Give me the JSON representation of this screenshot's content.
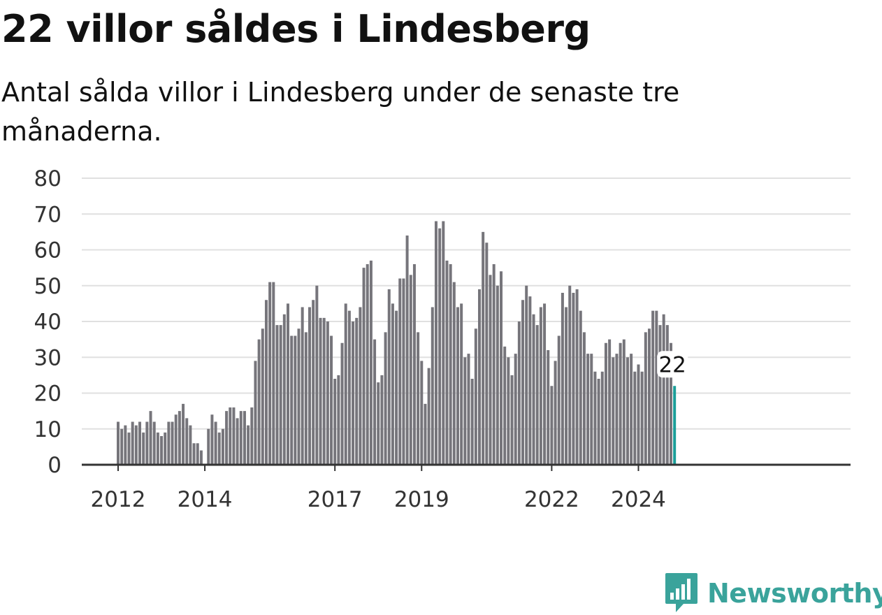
{
  "header": {
    "title": "22 villor såldes i Lindesberg",
    "subtitle": "Antal sålda villor i Lindesberg under de senaste tre månaderna."
  },
  "colors": {
    "bar": "#76757b",
    "highlight": "#1a9e99",
    "grid": "#e0e0e0",
    "axis": "#333333",
    "brand": "#3aa39b"
  },
  "logo": {
    "text": "Newsworthy",
    "icon": "newsworthy-logo-icon"
  },
  "chart_data": {
    "type": "bar",
    "start_year": 2012,
    "ylim": [
      0,
      80
    ],
    "yticks": [
      0,
      10,
      20,
      30,
      40,
      50,
      60,
      70,
      80
    ],
    "xtick_labels": [
      "2012",
      "2014",
      "2017",
      "2019",
      "2022",
      "2024"
    ],
    "grid": true,
    "highlight_label": "22",
    "values": [
      12,
      10,
      11,
      9,
      12,
      11,
      12,
      9,
      12,
      15,
      12,
      9,
      8,
      9,
      12,
      12,
      14,
      15,
      17,
      13,
      11,
      6,
      6,
      4,
      0,
      10,
      14,
      12,
      9,
      10,
      15,
      16,
      16,
      13,
      15,
      15,
      11,
      16,
      29,
      35,
      38,
      46,
      51,
      51,
      39,
      39,
      42,
      45,
      36,
      36,
      38,
      44,
      37,
      44,
      46,
      50,
      41,
      41,
      40,
      36,
      24,
      25,
      34,
      45,
      43,
      40,
      41,
      44,
      55,
      56,
      57,
      35,
      23,
      25,
      37,
      49,
      45,
      43,
      52,
      52,
      64,
      53,
      56,
      37,
      29,
      17,
      27,
      44,
      68,
      66,
      68,
      57,
      56,
      51,
      44,
      45,
      30,
      31,
      24,
      38,
      49,
      65,
      62,
      53,
      56,
      50,
      54,
      33,
      30,
      25,
      31,
      40,
      46,
      50,
      47,
      42,
      39,
      44,
      45,
      32,
      22,
      29,
      36,
      48,
      44,
      50,
      48,
      49,
      43,
      37,
      31,
      31,
      26,
      24,
      26,
      34,
      35,
      30,
      31,
      34,
      35,
      30,
      31,
      26,
      28,
      26,
      37,
      38,
      43,
      43,
      39,
      42,
      39,
      34,
      22
    ]
  }
}
